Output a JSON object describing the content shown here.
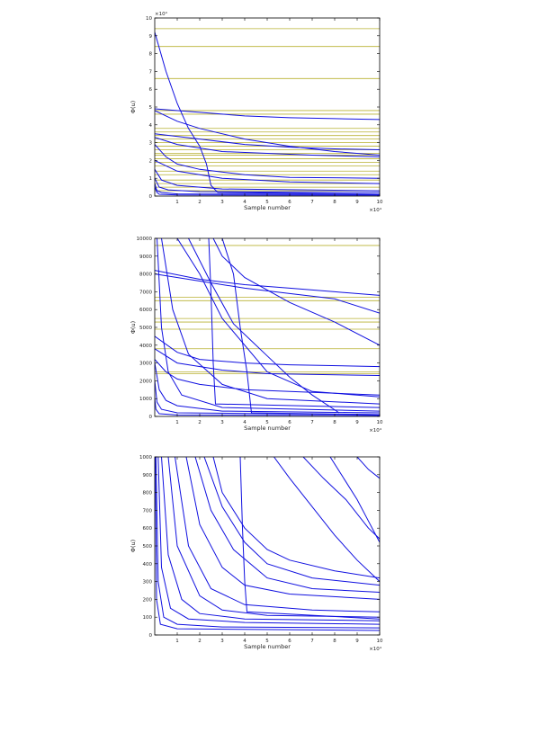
{
  "colors": {
    "series": "#1010e0",
    "reference": "#b8b030",
    "axis": "#000000",
    "background": "#ffffff"
  },
  "chart_data": [
    {
      "type": "line",
      "xlabel": "Sample number",
      "ylabel": "Φ(u)",
      "x_exponent": "×10⁴",
      "y_exponent": "×10⁴",
      "xlim": [
        0,
        10
      ],
      "ylim": [
        0,
        10
      ],
      "xticks": [
        1,
        2,
        3,
        4,
        5,
        6,
        7,
        8,
        9,
        10
      ],
      "yticks": [
        0,
        1,
        2,
        3,
        4,
        5,
        6,
        7,
        8,
        9,
        10
      ],
      "grid": false,
      "reference_lines": [
        9.4,
        8.4,
        6.6,
        4.8,
        4.6,
        3.8,
        3.6,
        3.4,
        3.2,
        3.0,
        2.8,
        2.6,
        2.4,
        2.3,
        2.1,
        1.9,
        1.7,
        1.4,
        1.2,
        0.9,
        0.7,
        0.5,
        0.3
      ],
      "series": [
        {
          "x": [
            0,
            0.5,
            1,
            1.5,
            2,
            2.3,
            2.5,
            2.8,
            10
          ],
          "y": [
            9.2,
            7.0,
            5.2,
            3.8,
            2.8,
            1.8,
            0.6,
            0.2,
            0.1
          ]
        },
        {
          "x": [
            0,
            2,
            4,
            6,
            8,
            10
          ],
          "y": [
            4.9,
            4.7,
            4.5,
            4.4,
            4.35,
            4.3
          ]
        },
        {
          "x": [
            0,
            1,
            2,
            4,
            6,
            8,
            10
          ],
          "y": [
            4.8,
            4.2,
            3.8,
            3.2,
            2.8,
            2.5,
            2.3
          ]
        },
        {
          "x": [
            0,
            2,
            4,
            6,
            8,
            10
          ],
          "y": [
            3.5,
            3.2,
            2.9,
            2.75,
            2.65,
            2.6
          ]
        },
        {
          "x": [
            0,
            1,
            3,
            5,
            7,
            10
          ],
          "y": [
            3.3,
            2.9,
            2.5,
            2.4,
            2.3,
            2.2
          ]
        },
        {
          "x": [
            0,
            0.5,
            1,
            2,
            4,
            6,
            10
          ],
          "y": [
            2.9,
            2.2,
            1.8,
            1.5,
            1.2,
            1.05,
            1.0
          ]
        },
        {
          "x": [
            0,
            1,
            3,
            6,
            10
          ],
          "y": [
            2.0,
            1.4,
            1.0,
            0.8,
            0.7
          ]
        },
        {
          "x": [
            0,
            0.3,
            1,
            3,
            10
          ],
          "y": [
            1.5,
            0.9,
            0.6,
            0.4,
            0.3
          ]
        },
        {
          "x": [
            0,
            0.2,
            0.6,
            2,
            10
          ],
          "y": [
            1.0,
            0.5,
            0.35,
            0.25,
            0.2
          ]
        },
        {
          "x": [
            0,
            0.1,
            0.3,
            1,
            10
          ],
          "y": [
            0.7,
            0.3,
            0.2,
            0.12,
            0.1
          ]
        },
        {
          "x": [
            0,
            0.1,
            0.2,
            1,
            10
          ],
          "y": [
            0.5,
            0.2,
            0.1,
            0.06,
            0.05
          ]
        }
      ]
    },
    {
      "type": "line",
      "xlabel": "Sample number",
      "ylabel": "Φ(u)",
      "x_exponent": "×10⁴",
      "xlim": [
        0,
        10
      ],
      "ylim": [
        0,
        10000
      ],
      "xticks": [
        1,
        2,
        3,
        4,
        5,
        6,
        7,
        8,
        9,
        10
      ],
      "yticks": [
        0,
        1000,
        2000,
        3000,
        4000,
        5000,
        6000,
        7000,
        8000,
        9000,
        10000
      ],
      "grid": false,
      "reference_lines": [
        9600,
        6700,
        6500,
        5500,
        5300,
        4900,
        3800,
        2500,
        2400
      ],
      "series": [
        {
          "x": [
            2.4,
            2.5,
            2.6,
            2.7,
            10
          ],
          "y": [
            10000,
            7000,
            3000,
            700,
            500
          ]
        },
        {
          "x": [
            3.0,
            3.5,
            3.8,
            4.1,
            4.3,
            10
          ],
          "y": [
            10000,
            8000,
            5000,
            2500,
            200,
            100
          ]
        },
        {
          "x": [
            2.6,
            3,
            4,
            6,
            8,
            10
          ],
          "y": [
            10000,
            9000,
            7800,
            6400,
            5300,
            4000
          ]
        },
        {
          "x": [
            0,
            2,
            4,
            6,
            8,
            10
          ],
          "y": [
            8200,
            7700,
            7400,
            7200,
            7000,
            6800
          ]
        },
        {
          "x": [
            0,
            2,
            4,
            6,
            8,
            10
          ],
          "y": [
            8000,
            7600,
            7200,
            6900,
            6600,
            5800
          ]
        },
        {
          "x": [
            1.0,
            2,
            3,
            5,
            7,
            10
          ],
          "y": [
            10000,
            8000,
            5500,
            2500,
            1400,
            1100
          ]
        },
        {
          "x": [
            1.5,
            2.5,
            3.5,
            5,
            6,
            7,
            8.2
          ],
          "y": [
            10000,
            7500,
            5200,
            3400,
            2200,
            1200,
            200
          ]
        },
        {
          "x": [
            0,
            1,
            2,
            4,
            6,
            10
          ],
          "y": [
            4500,
            3600,
            3200,
            3000,
            2900,
            2800
          ]
        },
        {
          "x": [
            0,
            1,
            3,
            5,
            10
          ],
          "y": [
            3800,
            3000,
            2600,
            2400,
            2300
          ]
        },
        {
          "x": [
            0,
            0.5,
            1,
            2,
            4,
            10
          ],
          "y": [
            3200,
            2500,
            2100,
            1800,
            1500,
            1200
          ]
        },
        {
          "x": [
            0.3,
            0.8,
            1.5,
            3,
            5,
            10
          ],
          "y": [
            10000,
            6000,
            3500,
            1800,
            1000,
            700
          ]
        },
        {
          "x": [
            0.1,
            0.3,
            0.6,
            1.2,
            3,
            10
          ],
          "y": [
            10000,
            5000,
            2500,
            1200,
            500,
            300
          ]
        },
        {
          "x": [
            0,
            0.2,
            0.5,
            1,
            3,
            10
          ],
          "y": [
            3000,
            1500,
            900,
            600,
            300,
            200
          ]
        },
        {
          "x": [
            0,
            0.1,
            0.3,
            1,
            10
          ],
          "y": [
            2000,
            800,
            400,
            200,
            100
          ]
        },
        {
          "x": [
            0,
            0.05,
            0.2,
            1,
            10
          ],
          "y": [
            1000,
            400,
            150,
            80,
            50
          ]
        }
      ]
    },
    {
      "type": "line",
      "xlabel": "Sample number",
      "ylabel": "Φ(u)",
      "x_exponent": "×10⁴",
      "xlim": [
        0,
        10
      ],
      "ylim": [
        0,
        1000
      ],
      "xticks": [
        1,
        2,
        3,
        4,
        5,
        6,
        7,
        8,
        9,
        10
      ],
      "yticks": [
        0,
        100,
        200,
        300,
        400,
        500,
        600,
        700,
        800,
        900,
        1000
      ],
      "grid": false,
      "reference_lines": [],
      "series": [
        {
          "x": [
            3.8,
            3.9,
            4.0,
            4.1,
            10
          ],
          "y": [
            1000,
            600,
            300,
            130,
            90
          ]
        },
        {
          "x": [
            2.6,
            3,
            4,
            5,
            6,
            8,
            10
          ],
          "y": [
            1000,
            800,
            600,
            480,
            420,
            360,
            320
          ]
        },
        {
          "x": [
            5.3,
            6,
            7,
            8,
            9,
            10
          ],
          "y": [
            1000,
            880,
            720,
            560,
            420,
            300
          ]
        },
        {
          "x": [
            7.8,
            8.5,
            9,
            9.5,
            10
          ],
          "y": [
            1000,
            860,
            760,
            640,
            520
          ]
        },
        {
          "x": [
            6.6,
            7.5,
            8.5,
            9.5,
            10
          ],
          "y": [
            1000,
            880,
            760,
            600,
            540
          ]
        },
        {
          "x": [
            9.0,
            9.5,
            10
          ],
          "y": [
            1000,
            930,
            880
          ]
        },
        {
          "x": [
            1.8,
            2.5,
            3.5,
            5,
            7,
            10
          ],
          "y": [
            1000,
            700,
            480,
            320,
            260,
            240
          ]
        },
        {
          "x": [
            2.2,
            3,
            4,
            5,
            7,
            10
          ],
          "y": [
            1000,
            720,
            520,
            400,
            320,
            280
          ]
        },
        {
          "x": [
            1.4,
            2,
            3,
            4,
            6,
            10
          ],
          "y": [
            1000,
            620,
            380,
            280,
            230,
            200
          ]
        },
        {
          "x": [
            0.9,
            1.5,
            2.5,
            4,
            7,
            10
          ],
          "y": [
            1000,
            500,
            260,
            170,
            140,
            130
          ]
        },
        {
          "x": [
            0.6,
            1,
            2,
            3,
            5,
            10
          ],
          "y": [
            1000,
            500,
            220,
            140,
            110,
            100
          ]
        },
        {
          "x": [
            0.3,
            0.6,
            1.2,
            2,
            4,
            10
          ],
          "y": [
            1000,
            450,
            200,
            120,
            90,
            80
          ]
        },
        {
          "x": [
            0.15,
            0.3,
            0.7,
            1.5,
            4,
            10
          ],
          "y": [
            1000,
            380,
            150,
            90,
            70,
            60
          ]
        },
        {
          "x": [
            0.05,
            0.15,
            0.4,
            1,
            3,
            10
          ],
          "y": [
            1000,
            300,
            100,
            60,
            45,
            40
          ]
        },
        {
          "x": [
            0.02,
            0.08,
            0.25,
            1,
            10
          ],
          "y": [
            1000,
            200,
            60,
            35,
            25
          ]
        }
      ]
    }
  ]
}
